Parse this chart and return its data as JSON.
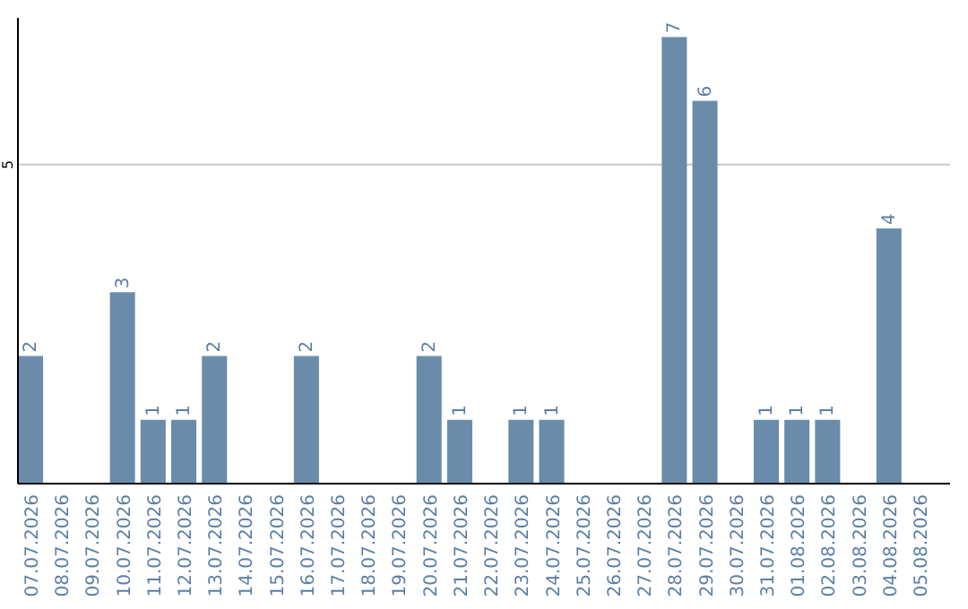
{
  "chart_data": {
    "type": "bar",
    "categories": [
      "07.07.2026",
      "08.07.2026",
      "09.07.2026",
      "10.07.2026",
      "11.07.2026",
      "12.07.2026",
      "13.07.2026",
      "14.07.2026",
      "15.07.2026",
      "16.07.2026",
      "17.07.2026",
      "18.07.2026",
      "19.07.2026",
      "20.07.2026",
      "21.07.2026",
      "22.07.2026",
      "23.07.2026",
      "24.07.2026",
      "25.07.2026",
      "26.07.2026",
      "27.07.2026",
      "28.07.2026",
      "29.07.2026",
      "30.07.2026",
      "31.07.2026",
      "01.08.2026",
      "02.08.2026",
      "03.08.2026",
      "04.08.2026",
      "05.08.2026"
    ],
    "values": [
      2,
      0,
      0,
      3,
      1,
      1,
      2,
      0,
      0,
      2,
      0,
      0,
      0,
      2,
      1,
      0,
      1,
      1,
      0,
      0,
      0,
      7,
      6,
      0,
      1,
      1,
      1,
      0,
      4,
      0
    ],
    "value_labels": [
      "2",
      null,
      null,
      "3",
      "1",
      "1",
      "2",
      null,
      null,
      "2",
      null,
      null,
      null,
      "2",
      "1",
      null,
      "1",
      "1",
      null,
      null,
      null,
      "7",
      "6",
      null,
      "1",
      "1",
      "1",
      null,
      "4",
      null
    ],
    "color": "#6a8caa",
    "ylim": [
      0,
      7.3
    ],
    "yticks": [
      5
    ],
    "grid": "y"
  }
}
